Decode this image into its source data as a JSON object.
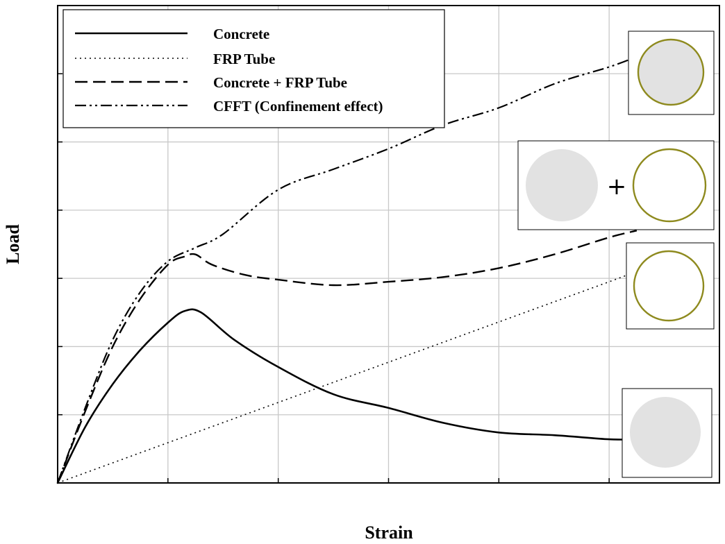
{
  "chart_data": {
    "type": "line",
    "title": "",
    "xlabel": "Strain",
    "ylabel": "Load",
    "xlim": [
      0,
      6
    ],
    "ylim": [
      0,
      7
    ],
    "x_ticks": [
      0,
      1,
      2,
      3,
      4,
      5,
      6
    ],
    "y_ticks": [
      0,
      1,
      2,
      3,
      4,
      5,
      6,
      7
    ],
    "grid": true,
    "tick_labels_shown": false,
    "legend_position": "top-left",
    "series": [
      {
        "name": "Concrete",
        "style": "solid",
        "x": [
          0,
          0.25,
          0.5,
          0.75,
          1.0,
          1.15,
          1.3,
          1.6,
          2.0,
          2.5,
          3.0,
          3.5,
          4.0,
          4.5,
          5.0,
          5.25
        ],
        "y": [
          0,
          0.82,
          1.45,
          1.95,
          2.35,
          2.52,
          2.5,
          2.1,
          1.7,
          1.3,
          1.1,
          0.88,
          0.74,
          0.7,
          0.64,
          0.64
        ]
      },
      {
        "name": "FRP Tube",
        "style": "dotted",
        "x": [
          0,
          1,
          2,
          3,
          4,
          5,
          5.25
        ],
        "y": [
          0,
          0.59,
          1.18,
          1.77,
          2.36,
          2.95,
          3.1
        ]
      },
      {
        "name": "Concrete + FRP Tube",
        "style": "dashed",
        "x": [
          0,
          0.25,
          0.5,
          0.75,
          1.0,
          1.15,
          1.25,
          1.4,
          1.7,
          2.0,
          2.5,
          3.0,
          3.5,
          4.0,
          4.5,
          5.0,
          5.25
        ],
        "y": [
          0,
          1.05,
          2.0,
          2.7,
          3.2,
          3.32,
          3.35,
          3.2,
          3.05,
          2.98,
          2.9,
          2.95,
          3.02,
          3.15,
          3.35,
          3.6,
          3.7
        ]
      },
      {
        "name": "CFFT (Confinement effect)",
        "style": "dash-dot-dot",
        "x": [
          0,
          0.25,
          0.5,
          0.75,
          1.0,
          1.25,
          1.5,
          2.0,
          2.5,
          3.0,
          3.5,
          4.0,
          4.5,
          5.0,
          5.25
        ],
        "y": [
          0,
          1.1,
          2.1,
          2.8,
          3.25,
          3.45,
          3.65,
          4.3,
          4.6,
          4.9,
          5.25,
          5.5,
          5.85,
          6.1,
          6.25
        ]
      }
    ]
  },
  "legend": {
    "items": [
      {
        "label": "Concrete"
      },
      {
        "label": "FRP Tube"
      },
      {
        "label": "Concrete + FRP Tube"
      },
      {
        "label": "CFFT (Confinement effect)"
      }
    ]
  },
  "insets": {
    "plus_symbol": "+"
  },
  "colors": {
    "tube": "#8e8a1e",
    "concrete_fill": "#e2e2e2",
    "grid": "#c8c8c8"
  }
}
